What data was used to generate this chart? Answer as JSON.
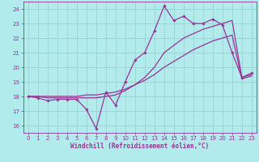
{
  "xlabel": "Windchill (Refroidissement éolien,°C)",
  "background_color": "#b2ebeb",
  "line_color": "#993399",
  "grid_color": "#99cccc",
  "xlim": [
    -0.5,
    23.5
  ],
  "ylim": [
    15.5,
    24.5
  ],
  "yticks": [
    16,
    17,
    18,
    19,
    20,
    21,
    22,
    23,
    24
  ],
  "xticks": [
    0,
    1,
    2,
    3,
    4,
    5,
    6,
    7,
    8,
    9,
    10,
    11,
    12,
    13,
    14,
    15,
    16,
    17,
    18,
    19,
    20,
    21,
    22,
    23
  ],
  "series1_x": [
    0,
    1,
    2,
    3,
    4,
    5,
    6,
    7,
    8,
    9,
    10,
    11,
    12,
    13,
    14,
    15,
    16,
    17,
    18,
    19,
    20,
    21,
    22,
    23
  ],
  "series1_y": [
    18.0,
    17.9,
    17.7,
    17.8,
    17.8,
    17.8,
    17.1,
    15.8,
    18.3,
    17.4,
    19.0,
    20.5,
    21.0,
    22.5,
    24.2,
    23.2,
    23.5,
    23.0,
    23.0,
    23.3,
    22.9,
    21.0,
    19.3,
    19.6
  ],
  "series2_x": [
    0,
    1,
    2,
    3,
    4,
    5,
    6,
    7,
    8,
    9,
    10,
    11,
    12,
    13,
    14,
    15,
    16,
    17,
    18,
    19,
    20,
    21,
    22,
    23
  ],
  "series2_y": [
    18.0,
    18.0,
    17.9,
    17.9,
    17.9,
    17.9,
    17.9,
    17.9,
    18.0,
    18.1,
    18.4,
    18.8,
    19.3,
    20.0,
    21.0,
    21.5,
    22.0,
    22.3,
    22.6,
    22.8,
    23.0,
    23.2,
    19.3,
    19.5
  ],
  "series3_x": [
    0,
    1,
    2,
    3,
    4,
    5,
    6,
    7,
    8,
    9,
    10,
    11,
    12,
    13,
    14,
    15,
    16,
    17,
    18,
    19,
    20,
    21,
    22,
    23
  ],
  "series3_y": [
    18.0,
    18.0,
    18.0,
    18.0,
    18.0,
    18.0,
    18.1,
    18.1,
    18.2,
    18.3,
    18.5,
    18.8,
    19.1,
    19.5,
    20.0,
    20.4,
    20.8,
    21.2,
    21.5,
    21.8,
    22.0,
    22.2,
    19.2,
    19.4
  ],
  "xlabel_fontsize": 5.5,
  "tick_fontsize": 5,
  "linewidth": 0.9,
  "marker": "D",
  "markersize": 1.8
}
